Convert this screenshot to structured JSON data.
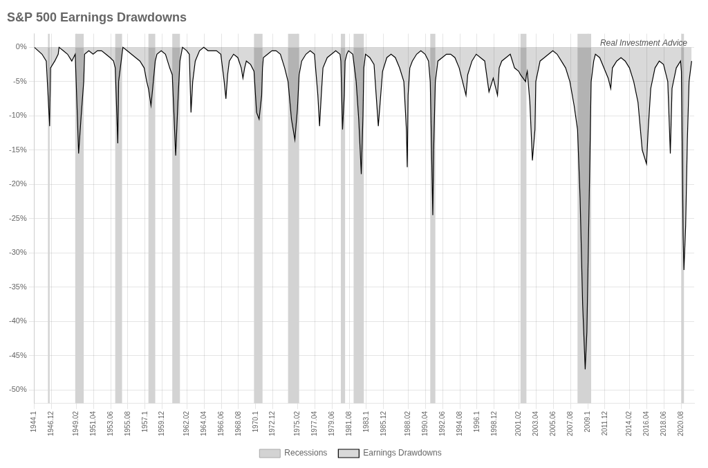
{
  "chart_data": {
    "type": "line",
    "title": "S&P 500 Earnings Drawdowns",
    "annotation": "Real Investment Advice",
    "background_color": "#ffffff",
    "grid": true,
    "legend": "bottom",
    "xlim": [
      1944.1,
      2021.6
    ],
    "xticks": [
      1944.1,
      1946.12,
      1949.02,
      1951.04,
      1953.06,
      1955.08,
      1957.1,
      1959.12,
      1962.02,
      1964.04,
      1966.06,
      1968.08,
      1970.1,
      1972.12,
      1975.02,
      1977.04,
      1979.06,
      1981.08,
      1983.1,
      1985.12,
      1988.02,
      1990.04,
      1992.06,
      1994.08,
      1996.1,
      1998.12,
      2001.02,
      2003.04,
      2005.06,
      2007.08,
      2009.1,
      2011.12,
      2014.02,
      2016.04,
      2018.06,
      2020.08
    ],
    "ylim": [
      -52,
      2
    ],
    "yticks": [
      {
        "value": 0,
        "label": "0%"
      },
      {
        "value": -5,
        "label": "-5%"
      },
      {
        "value": -10,
        "label": "-10%"
      },
      {
        "value": -15,
        "label": "-15%"
      },
      {
        "value": -20,
        "label": "-20%"
      },
      {
        "value": -25,
        "label": "-25%"
      },
      {
        "value": -30,
        "label": "-30%"
      },
      {
        "value": -35,
        "label": "-35%"
      },
      {
        "value": -40,
        "label": "-40%"
      },
      {
        "value": -45,
        "label": "-45%"
      },
      {
        "value": -50,
        "label": "-50%"
      }
    ],
    "recessions": {
      "name": "Recessions",
      "color": "#d3d3d3",
      "periods": [
        [
          1945.7,
          1945.9
        ],
        [
          1948.9,
          1949.9
        ],
        [
          1953.6,
          1954.4
        ],
        [
          1957.5,
          1958.3
        ],
        [
          1960.3,
          1961.2
        ],
        [
          1969.9,
          1970.9
        ],
        [
          1973.9,
          1975.2
        ],
        [
          1980.1,
          1980.6
        ],
        [
          1981.6,
          1982.8
        ],
        [
          1990.6,
          1991.2
        ],
        [
          2001.2,
          2001.9
        ],
        [
          2007.9,
          2009.5
        ],
        [
          2020.1,
          2020.4
        ]
      ]
    },
    "x": [
      1944.1,
      1945.0,
      1945.5,
      1945.9,
      1946.0,
      1946.5,
      1946.9,
      1947.0,
      1947.5,
      1948.0,
      1948.5,
      1948.9,
      1949.3,
      1949.6,
      1949.9,
      1950.0,
      1950.5,
      1951.0,
      1951.5,
      1952.0,
      1952.5,
      1953.0,
      1953.4,
      1953.6,
      1953.9,
      1954.0,
      1954.4,
      1954.5,
      1955.0,
      1955.5,
      1956.0,
      1956.5,
      1957.0,
      1957.3,
      1957.5,
      1957.8,
      1958.0,
      1958.3,
      1958.5,
      1959.0,
      1959.5,
      1960.0,
      1960.3,
      1960.7,
      1961.0,
      1961.2,
      1961.5,
      1962.0,
      1962.3,
      1962.5,
      1962.7,
      1963.0,
      1963.5,
      1964.0,
      1964.5,
      1965.0,
      1965.5,
      1966.0,
      1966.4,
      1966.6,
      1966.8,
      1967.0,
      1967.5,
      1968.0,
      1968.4,
      1968.6,
      1968.8,
      1969.0,
      1969.5,
      1969.9,
      1970.2,
      1970.5,
      1970.8,
      1970.9,
      1971.0,
      1971.5,
      1972.0,
      1972.5,
      1973.0,
      1973.5,
      1973.9,
      1974.3,
      1974.7,
      1975.0,
      1975.2,
      1975.5,
      1976.0,
      1976.5,
      1977.0,
      1977.4,
      1977.6,
      1977.8,
      1978.0,
      1978.5,
      1979.0,
      1979.5,
      1980.0,
      1980.1,
      1980.3,
      1980.5,
      1980.6,
      1980.8,
      1981.0,
      1981.5,
      1981.6,
      1981.9,
      1982.2,
      1982.5,
      1982.7,
      1982.8,
      1983.0,
      1983.5,
      1984.0,
      1984.5,
      1985.0,
      1985.5,
      1986.0,
      1986.5,
      1987.0,
      1987.5,
      1987.8,
      1987.9,
      1988.0,
      1988.2,
      1988.5,
      1989.0,
      1989.5,
      1990.0,
      1990.4,
      1990.6,
      1990.9,
      1991.0,
      1991.2,
      1991.5,
      1992.0,
      1992.5,
      1993.0,
      1993.5,
      1994.0,
      1994.5,
      1994.8,
      1995.0,
      1995.5,
      1996.0,
      1996.5,
      1997.0,
      1997.5,
      1998.0,
      1998.4,
      1998.5,
      1998.7,
      1999.0,
      1999.5,
      2000.0,
      2000.5,
      2001.0,
      2001.2,
      2001.5,
      2001.8,
      2001.9,
      2002.0,
      2002.3,
      2002.6,
      2002.9,
      2003.0,
      2003.5,
      2004.0,
      2004.5,
      2005.0,
      2005.5,
      2006.0,
      2006.5,
      2007.0,
      2007.5,
      2007.9,
      2008.2,
      2008.5,
      2008.8,
      2009.0,
      2009.3,
      2009.5,
      2009.8,
      2010.0,
      2010.5,
      2011.0,
      2011.5,
      2011.8,
      2012.0,
      2012.5,
      2013.0,
      2013.5,
      2014.0,
      2014.5,
      2015.0,
      2015.5,
      2016.0,
      2016.2,
      2016.5,
      2017.0,
      2017.5,
      2018.0,
      2018.5,
      2018.8,
      2019.0,
      2019.5,
      2020.0,
      2020.1,
      2020.3,
      2020.4,
      2020.6,
      2020.8,
      2021.0,
      2021.3
    ],
    "series": [
      {
        "name": "Earnings Drawdowns",
        "color": "#000000",
        "values": [
          0.0,
          -1.0,
          -2.0,
          -11.5,
          -3.0,
          -2.0,
          -1.0,
          0.0,
          -0.5,
          -1.0,
          -2.0,
          -1.0,
          -15.5,
          -10.0,
          -5.0,
          -1.0,
          -0.5,
          -1.0,
          -0.5,
          -0.5,
          -1.0,
          -1.5,
          -2.0,
          -3.0,
          -14.0,
          -5.0,
          -1.0,
          0.0,
          -0.5,
          -1.0,
          -1.5,
          -2.0,
          -3.0,
          -5.0,
          -6.0,
          -8.5,
          -6.0,
          -2.0,
          -1.0,
          -0.5,
          -1.0,
          -3.0,
          -4.0,
          -15.8,
          -7.0,
          -2.0,
          0.0,
          -0.5,
          -1.0,
          -9.5,
          -5.0,
          -2.0,
          -0.5,
          0.0,
          -0.5,
          -0.5,
          -0.5,
          -1.0,
          -5.0,
          -7.5,
          -4.0,
          -2.0,
          -1.0,
          -1.5,
          -3.0,
          -4.5,
          -3.0,
          -2.0,
          -2.5,
          -3.5,
          -9.5,
          -10.5,
          -7.0,
          -3.0,
          -1.5,
          -1.0,
          -0.5,
          -0.5,
          -1.0,
          -3.0,
          -5.0,
          -10.5,
          -13.5,
          -9.0,
          -4.0,
          -2.0,
          -1.0,
          -0.5,
          -1.0,
          -7.0,
          -11.5,
          -7.0,
          -3.0,
          -1.5,
          -1.0,
          -0.5,
          -1.0,
          -2.0,
          -12.0,
          -7.0,
          -2.0,
          -1.0,
          -0.5,
          -1.0,
          -2.0,
          -5.0,
          -10.5,
          -18.5,
          -10.0,
          -3.0,
          -1.0,
          -1.5,
          -2.5,
          -11.5,
          -3.5,
          -1.5,
          -1.0,
          -1.5,
          -3.0,
          -5.0,
          -12.0,
          -17.5,
          -7.0,
          -3.0,
          -2.0,
          -1.0,
          -0.5,
          -1.0,
          -2.0,
          -5.0,
          -24.5,
          -15.0,
          -5.0,
          -2.0,
          -1.5,
          -1.0,
          -1.0,
          -1.5,
          -3.0,
          -5.5,
          -7.0,
          -4.0,
          -2.0,
          -1.0,
          -1.5,
          -2.0,
          -6.5,
          -4.5,
          -6.5,
          -7.0,
          -3.0,
          -2.0,
          -1.5,
          -1.0,
          -3.0,
          -3.5,
          -4.0,
          -4.5,
          -5.0,
          -4.0,
          -3.5,
          -8.0,
          -16.5,
          -12.0,
          -5.0,
          -2.0,
          -1.5,
          -1.0,
          -0.5,
          -1.0,
          -2.0,
          -3.0,
          -5.0,
          -8.5,
          -12.0,
          -22.0,
          -37.5,
          -47.0,
          -41.5,
          -20.0,
          -5.0,
          -2.0,
          -1.0,
          -1.5,
          -3.0,
          -4.5,
          -6.0,
          -3.0,
          -2.0,
          -1.5,
          -2.0,
          -3.0,
          -5.0,
          -8.0,
          -15.0,
          -17.0,
          -12.0,
          -6.0,
          -3.0,
          -2.0,
          -2.5,
          -5.0,
          -15.5,
          -6.0,
          -3.0,
          -2.0,
          -3.5,
          -27.5,
          -32.5,
          -26.0,
          -13.5,
          -5.0,
          -2.0
        ]
      }
    ]
  }
}
